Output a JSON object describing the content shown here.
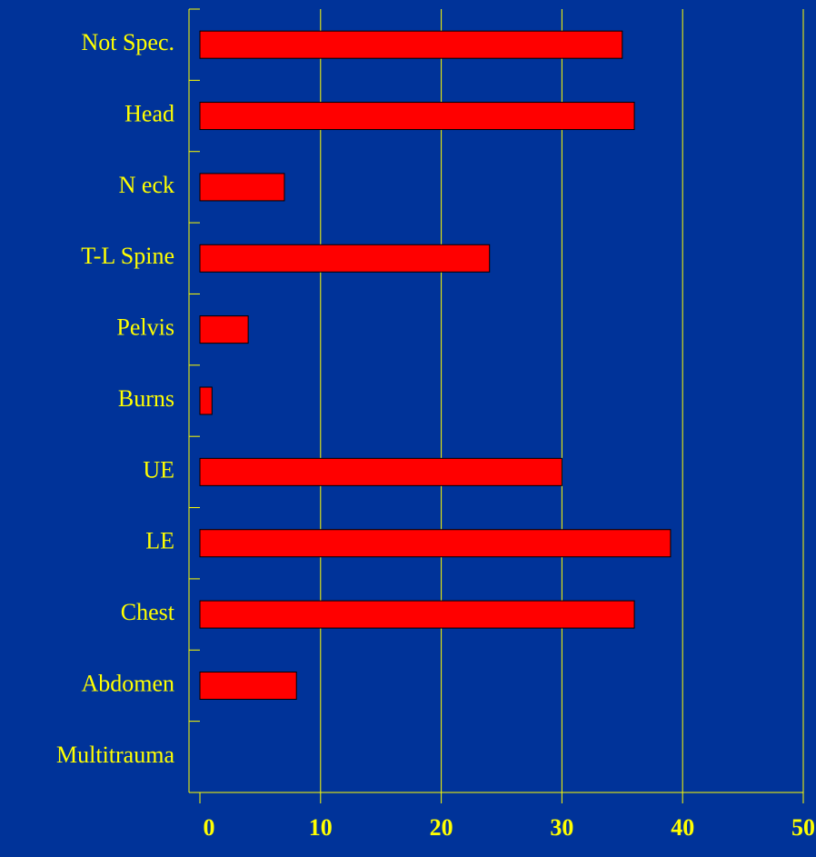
{
  "chart_data": {
    "type": "bar",
    "orientation": "horizontal",
    "categories": [
      "Not Spec.",
      "Head",
      "N eck",
      "T-L Spine",
      "Pelvis",
      "Burns",
      "UE",
      "LE",
      "Chest",
      "Abdomen",
      "Multitrauma"
    ],
    "values": [
      35,
      36,
      7,
      24,
      4,
      1,
      30,
      39,
      36,
      8,
      0
    ],
    "color": "#ff0000",
    "xlim": [
      0,
      50
    ],
    "xticks": [
      0,
      10,
      20,
      30,
      40,
      50
    ],
    "grid": true
  }
}
